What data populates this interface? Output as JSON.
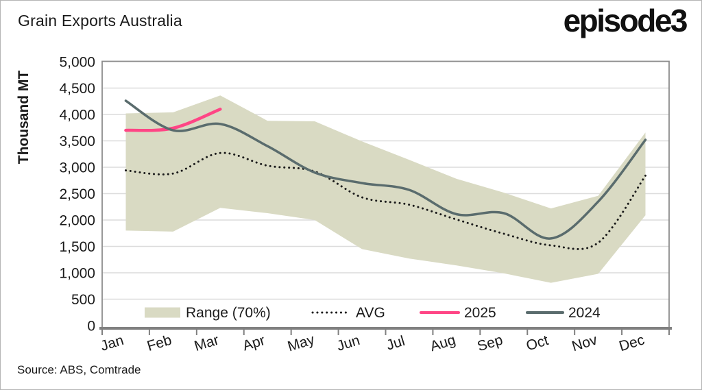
{
  "header": {
    "title": "Grain Exports Australia",
    "logo_text": "episode3"
  },
  "source_note": "Source: ABS, Comtrade",
  "colors": {
    "band": "#D9DAC3",
    "avg_line": "#1A1A1A",
    "line_2025": "#FF4585",
    "line_2024": "#5A6C6D",
    "grid": "#DCDCDC",
    "axis": "#808080",
    "text": "#1A1A1A"
  },
  "chart_data": {
    "type": "line",
    "title": "Grain Exports Australia",
    "ylabel": "Thousand MT",
    "xlabel": "",
    "ylim": [
      0,
      5000
    ],
    "ytick_step": 500,
    "ytick_labels": [
      "0",
      "500",
      "1,000",
      "1,500",
      "2,000",
      "2,500",
      "3,000",
      "3,500",
      "4,000",
      "4,500",
      "5,000"
    ],
    "categories": [
      "Jan",
      "Feb",
      "Mar",
      "Apr",
      "May",
      "Jun",
      "Jul",
      "Aug",
      "Sep",
      "Oct",
      "Nov",
      "Dec"
    ],
    "grid": "horizontal",
    "legend_position": "bottom-inside",
    "series": [
      {
        "name": "Range (70%)",
        "type": "band",
        "color": "#D9DAC3",
        "upper": [
          4020,
          4040,
          4360,
          3880,
          3870,
          3490,
          3140,
          2780,
          2520,
          2220,
          2460,
          3660
        ],
        "lower": [
          1800,
          1780,
          2230,
          2130,
          2000,
          1450,
          1270,
          1140,
          990,
          810,
          980,
          2090
        ]
      },
      {
        "name": "AVG",
        "type": "line",
        "style": "dotted",
        "color": "#1A1A1A",
        "values": [
          2940,
          2880,
          3270,
          3030,
          2920,
          2430,
          2290,
          2010,
          1740,
          1520,
          1570,
          2840
        ]
      },
      {
        "name": "2025",
        "type": "line",
        "style": "solid",
        "color": "#FF4585",
        "values": [
          3700,
          3740,
          4100,
          null,
          null,
          null,
          null,
          null,
          null,
          null,
          null,
          null
        ]
      },
      {
        "name": "2024",
        "type": "line",
        "style": "solid",
        "color": "#5A6C6D",
        "values": [
          4260,
          3700,
          3820,
          3400,
          2900,
          2700,
          2570,
          2110,
          2130,
          1650,
          2350,
          3520
        ]
      }
    ]
  }
}
